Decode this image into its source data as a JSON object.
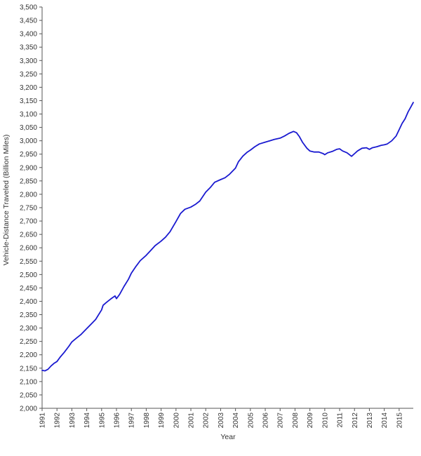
{
  "chart_data": {
    "type": "line",
    "title": "",
    "xlabel": "Year",
    "ylabel": "Vehicle-Distance Traveled (Billion Miles)",
    "xlim": [
      1991,
      2015.95
    ],
    "ylim": [
      2000,
      3500
    ],
    "y_ticks": [
      2000,
      2050,
      2100,
      2150,
      2200,
      2250,
      2300,
      2350,
      2400,
      2450,
      2500,
      2550,
      2600,
      2650,
      2700,
      2750,
      2800,
      2850,
      2900,
      2950,
      3000,
      3050,
      3100,
      3150,
      3200,
      3250,
      3300,
      3350,
      3400,
      3450,
      3500
    ],
    "y_tick_labels": [
      "2,000",
      "2,050",
      "2,100",
      "2,150",
      "2,200",
      "2,250",
      "2,300",
      "2,350",
      "2,400",
      "2,450",
      "2,500",
      "2,550",
      "2,600",
      "2,650",
      "2,700",
      "2,750",
      "2,800",
      "2,850",
      "2,900",
      "2,950",
      "3,000",
      "3,050",
      "3,100",
      "3,150",
      "3,200",
      "3,250",
      "3,300",
      "3,350",
      "3,400",
      "3,450",
      "3,500"
    ],
    "x_ticks": [
      1991,
      1992,
      1993,
      1994,
      1995,
      1996,
      1997,
      1998,
      1999,
      2000,
      2001,
      2002,
      2003,
      2004,
      2005,
      2006,
      2007,
      2008,
      2009,
      2010,
      2011,
      2012,
      2013,
      2014,
      2015
    ],
    "x_tick_labels": [
      "1991",
      "1992",
      "1993",
      "1994",
      "1995",
      "1996",
      "1997",
      "1998",
      "1999",
      "2000",
      "2001",
      "2002",
      "2003",
      "2004",
      "2005",
      "2006",
      "2007",
      "2008",
      "2009",
      "2010",
      "2011",
      "2012",
      "2013",
      "2014",
      "2015"
    ],
    "grid": false,
    "series": [
      {
        "color": "#1a1ad0",
        "x": [
          1991.0,
          1991.2,
          1991.4,
          1991.6,
          1991.8,
          1992.0,
          1992.2,
          1992.5,
          1992.8,
          1993.0,
          1993.3,
          1993.6,
          1994.0,
          1994.3,
          1994.6,
          1995.0,
          1995.1,
          1995.3,
          1995.6,
          1995.9,
          1996.0,
          1996.2,
          1996.5,
          1996.8,
          1997.0,
          1997.3,
          1997.6,
          1998.0,
          1998.3,
          1998.6,
          1999.0,
          1999.3,
          1999.6,
          2000.0,
          2000.3,
          2000.6,
          2001.0,
          2001.3,
          2001.6,
          2002.0,
          2002.3,
          2002.6,
          2003.0,
          2003.3,
          2003.6,
          2004.0,
          2004.2,
          2004.5,
          2004.8,
          2005.0,
          2005.3,
          2005.6,
          2006.0,
          2006.3,
          2006.6,
          2007.0,
          2007.3,
          2007.6,
          2007.9,
          2008.1,
          2008.3,
          2008.5,
          2008.8,
          2009.0,
          2009.3,
          2009.6,
          2009.9,
          2010.0,
          2010.2,
          2010.5,
          2010.8,
          2011.0,
          2011.2,
          2011.5,
          2011.8,
          2012.0,
          2012.2,
          2012.5,
          2012.8,
          2013.0,
          2013.2,
          2013.5,
          2013.8,
          2014.0,
          2014.2,
          2014.5,
          2014.8,
          2015.0,
          2015.2,
          2015.4,
          2015.6,
          2015.8,
          2015.95
        ],
        "y": [
          2142,
          2140,
          2146,
          2158,
          2168,
          2175,
          2190,
          2210,
          2232,
          2248,
          2262,
          2275,
          2298,
          2315,
          2332,
          2368,
          2385,
          2395,
          2408,
          2420,
          2410,
          2425,
          2455,
          2482,
          2505,
          2530,
          2552,
          2572,
          2590,
          2608,
          2625,
          2640,
          2660,
          2698,
          2728,
          2744,
          2752,
          2762,
          2775,
          2808,
          2825,
          2845,
          2855,
          2862,
          2875,
          2898,
          2922,
          2943,
          2958,
          2965,
          2978,
          2988,
          2995,
          3000,
          3005,
          3010,
          3018,
          3028,
          3035,
          3030,
          3015,
          2995,
          2972,
          2962,
          2958,
          2958,
          2952,
          2948,
          2955,
          2960,
          2968,
          2970,
          2962,
          2955,
          2942,
          2952,
          2962,
          2972,
          2974,
          2968,
          2974,
          2978,
          2983,
          2985,
          2988,
          3000,
          3018,
          3042,
          3065,
          3082,
          3108,
          3128,
          3143
        ]
      }
    ]
  }
}
